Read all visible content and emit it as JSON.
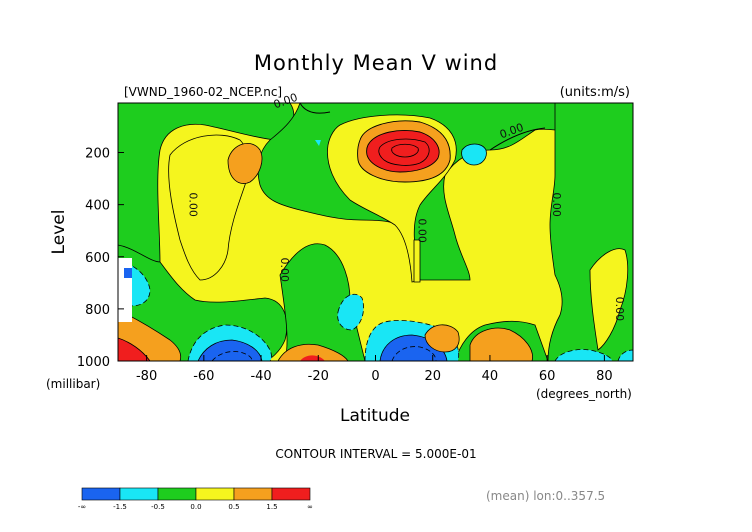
{
  "chart_data": {
    "type": "contour",
    "title": "Monthly Mean V wind",
    "dataset_label": "[VWND_1960-02_NCEP.nc]",
    "units_label": "(units:m/s)",
    "xlabel": "Latitude",
    "x_units": "(degrees_north)",
    "ylabel": "Level",
    "y_units": "(millibar)",
    "xlim": [
      -90,
      90
    ],
    "ylim": [
      1000,
      10
    ],
    "x_ticks": [
      -80,
      -60,
      -40,
      -20,
      0,
      20,
      40,
      60,
      80
    ],
    "y_ticks": [
      200,
      400,
      600,
      800,
      1000
    ],
    "contour_interval_text": "CONTOUR INTERVAL = 5.000E-01",
    "averaging_text": "(mean) lon:0..357.5",
    "contour_labels": [
      {
        "text": "0.00",
        "x": -31,
        "y": 15
      },
      {
        "text": "0.00",
        "x": 48,
        "y": 130
      },
      {
        "text": "0.00",
        "x": -65,
        "y": 400
      },
      {
        "text": "0.00",
        "x": 15,
        "y": 500
      },
      {
        "text": "0.00",
        "x": 62,
        "y": 400
      },
      {
        "text": "0.00",
        "x": -33,
        "y": 650
      },
      {
        "text": "0.00",
        "x": 84,
        "y": 800
      }
    ],
    "colorbar": {
      "levels": [
        "-∞",
        "-1.5",
        "-0.5",
        "0.0",
        "0.5",
        "1.5",
        "∞"
      ],
      "colors": [
        "#1a64f0",
        "#19e6f5",
        "#1ecd1e",
        "#f5f51e",
        "#f5a01e",
        "#f01e1e"
      ]
    },
    "regions": [
      {
        "level": "0.0..0.5",
        "color": "#f5f51e",
        "description": "background"
      },
      {
        "level": "-0.5..0.0",
        "color": "#1ecd1e"
      },
      {
        "level": "0.5..1.5",
        "color": "#f5a01e"
      },
      {
        "level": ">1.5",
        "color": "#f01e1e"
      },
      {
        "level": "-1.5..-0.5",
        "color": "#19e6f5"
      },
      {
        "level": "<-1.5",
        "color": "#1a64f0"
      }
    ]
  }
}
